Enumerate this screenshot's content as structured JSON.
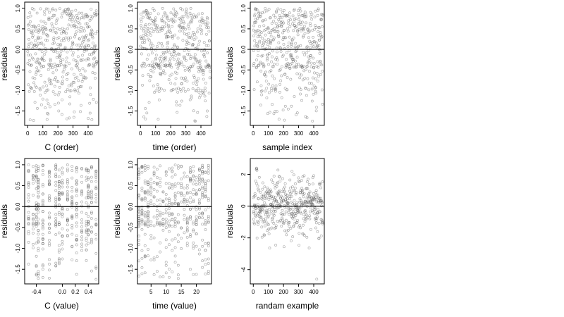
{
  "chart_data": [
    {
      "type": "scatter",
      "xlabel": "C (order)",
      "ylabel": "residuals",
      "xlim": [
        -20,
        470
      ],
      "ylim": [
        -1.85,
        1.15
      ],
      "xticks": [
        0,
        100,
        200,
        300,
        400
      ],
      "yticks": [
        -1.5,
        -1.0,
        -0.5,
        0.0,
        0.5,
        1.0
      ],
      "ytick_labels": [
        "-1.5",
        "-1.0",
        "-0.5",
        "0.0",
        "0.5",
        "1.0"
      ],
      "hline": 0,
      "points": {
        "n": 460,
        "x_range": [
          0,
          460
        ],
        "y_distribution": "skewed-low",
        "y_min": -1.75,
        "y_max": 1.05,
        "seed": 11
      }
    },
    {
      "type": "scatter",
      "xlabel": "time (order)",
      "ylabel": "residuals",
      "xlim": [
        -20,
        470
      ],
      "ylim": [
        -1.85,
        1.15
      ],
      "xticks": [
        0,
        100,
        200,
        300,
        400
      ],
      "yticks": [
        -1.5,
        -1.0,
        -0.5,
        0.0,
        0.5,
        1.0
      ],
      "ytick_labels": [
        "-1.5",
        "-1.0",
        "-0.5",
        "0.0",
        "0.5",
        "1.0"
      ],
      "hline": 0,
      "points": {
        "n": 460,
        "x_range": [
          0,
          460
        ],
        "y_distribution": "skewed-low",
        "y_min": -1.75,
        "y_max": 1.05,
        "seed": 23
      }
    },
    {
      "type": "scatter",
      "xlabel": "sample index",
      "ylabel": "residuals",
      "xlim": [
        -20,
        470
      ],
      "ylim": [
        -1.85,
        1.15
      ],
      "xticks": [
        0,
        100,
        200,
        300,
        400
      ],
      "yticks": [
        -1.5,
        -1.0,
        -0.5,
        0.0,
        0.5,
        1.0
      ],
      "ytick_labels": [
        "-1.5",
        "-1.0",
        "-0.5",
        "0.0",
        "0.5",
        "1.0"
      ],
      "hline": 0,
      "points": {
        "n": 460,
        "x_range": [
          0,
          460
        ],
        "y_distribution": "skewed-low",
        "y_min": -1.75,
        "y_max": 1.05,
        "seed": 37
      }
    },
    {
      "type": "scatter",
      "xlabel": "C (value)",
      "ylabel": "residuals",
      "xlim": [
        -0.58,
        0.56
      ],
      "ylim": [
        -1.85,
        1.15
      ],
      "xticks": [
        -0.4,
        0.0,
        0.2,
        0.4
      ],
      "xtick_labels": [
        "-0.4",
        "0.0",
        "0.2",
        "0.4"
      ],
      "yticks": [
        -1.5,
        -1.0,
        -0.5,
        0.0,
        0.5,
        1.0
      ],
      "ytick_labels": [
        "-1.5",
        "-1.0",
        "-0.5",
        "0.0",
        "0.5",
        "1.0"
      ],
      "hline": 0,
      "points": {
        "n": 460,
        "x_levels": [
          -0.52,
          -0.45,
          -0.4,
          -0.37,
          -0.3,
          -0.2,
          -0.1,
          -0.05,
          0.0,
          0.08,
          0.15,
          0.22,
          0.3,
          0.37,
          0.4,
          0.45,
          0.52
        ],
        "y_distribution": "skewed-low",
        "y_min": -1.75,
        "y_max": 1.05,
        "seed": 51
      }
    },
    {
      "type": "scatter",
      "xlabel": "time (value)",
      "ylabel": "residuals",
      "xlim": [
        0.5,
        25
      ],
      "ylim": [
        -1.85,
        1.15
      ],
      "xticks": [
        5,
        10,
        15,
        20
      ],
      "yticks": [
        -1.5,
        -1.0,
        -0.5,
        0.0,
        0.5,
        1.0
      ],
      "ytick_labels": [
        "-1.5",
        "-1.0",
        "-0.5",
        "0.0",
        "0.5",
        "1.0"
      ],
      "hline": 0,
      "points": {
        "n": 460,
        "x_levels": [
          1,
          2,
          3,
          4,
          5,
          6,
          7,
          8,
          9,
          10,
          11,
          12,
          13,
          14,
          15,
          16,
          17,
          18,
          19,
          20,
          21,
          22,
          23,
          24
        ],
        "y_distribution": "skewed-low",
        "y_min": -1.75,
        "y_max": 1.05,
        "seed": 67
      }
    },
    {
      "type": "scatter",
      "xlabel": "randam example",
      "ylabel": "residuals",
      "xlim": [
        -20,
        470
      ],
      "ylim": [
        -4.9,
        3.0
      ],
      "xticks": [
        0,
        100,
        200,
        300,
        400
      ],
      "yticks": [
        -4,
        -2,
        0,
        2
      ],
      "ytick_labels": [
        "-4",
        "-2",
        "0",
        "2"
      ],
      "hline": 0,
      "points": {
        "n": 460,
        "x_range": [
          0,
          460
        ],
        "y_distribution": "normal",
        "sd": 0.95,
        "extra_points": [
          [
            420,
            -4.6
          ]
        ],
        "seed": 83
      }
    }
  ]
}
